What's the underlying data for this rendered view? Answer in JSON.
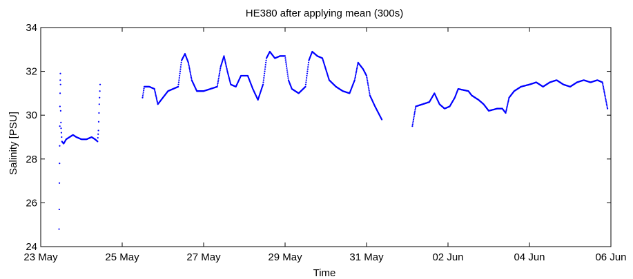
{
  "chart_data": {
    "type": "scatter",
    "title": "HE380 after applying mean (300s)",
    "xlabel": "Time",
    "ylabel": "Salinity [PSU]",
    "x_unit": "date (2013, days; tick labels day-month)",
    "xlim": [
      "23 May",
      "06 Jun"
    ],
    "ylim": [
      24,
      34
    ],
    "grid": false,
    "legend": "none",
    "marker_color": "#0000ff",
    "x_ticks": [
      "23 May",
      "25 May",
      "27 May",
      "29 May",
      "31 May",
      "02 Jun",
      "04 Jun",
      "06 Jun"
    ],
    "y_ticks": [
      "24",
      "26",
      "28",
      "30",
      "32",
      "34"
    ],
    "series": [
      {
        "points": [
          [
            "23 May 10:48",
            24.8
          ],
          [
            "23 May 10:55",
            25.7
          ],
          [
            "23 May 11:00",
            26.9
          ],
          [
            "23 May 11:05",
            27.8
          ],
          [
            "23 May 11:10",
            28.6
          ],
          [
            "23 May 11:15",
            29.5
          ],
          [
            "23 May 11:20",
            30.4
          ],
          [
            "23 May 11:25",
            31.0
          ],
          [
            "23 May 11:30",
            31.6
          ],
          [
            "23 May 11:35",
            31.9
          ],
          [
            "23 May 11:40",
            31.4
          ],
          [
            "23 May 11:45",
            30.2
          ],
          [
            "23 May 12:00",
            29.4
          ],
          [
            "23 May 12:30",
            28.8
          ],
          [
            "23 May 13:30",
            28.7
          ],
          [
            "23 May 15:00",
            28.9
          ],
          [
            "23 May 17:00",
            29.0
          ],
          [
            "23 May 19:00",
            29.1
          ],
          [
            "23 May 21:00",
            29.0
          ],
          [
            "24 May 00:00",
            28.9
          ],
          [
            "24 May 03:00",
            28.9
          ],
          [
            "24 May 06:00",
            29.0
          ],
          [
            "24 May 08:00",
            28.9
          ],
          [
            "24 May 09:30",
            28.8
          ],
          [
            "24 May 10:00",
            29.3
          ],
          [
            "24 May 10:30",
            30.5
          ],
          [
            "24 May 11:00",
            31.4
          ],
          [
            "25 May 12:00",
            30.8
          ],
          [
            "25 May 13:00",
            31.3
          ],
          [
            "25 May 16:00",
            31.3
          ],
          [
            "25 May 19:00",
            31.2
          ],
          [
            "25 May 21:00",
            30.5
          ],
          [
            "26 May 00:00",
            30.8
          ],
          [
            "26 May 03:00",
            31.1
          ],
          [
            "26 May 06:00",
            31.2
          ],
          [
            "26 May 09:00",
            31.3
          ],
          [
            "26 May 11:00",
            32.5
          ],
          [
            "26 May 13:00",
            32.8
          ],
          [
            "26 May 15:00",
            32.4
          ],
          [
            "26 May 17:00",
            31.6
          ],
          [
            "26 May 20:00",
            31.1
          ],
          [
            "27 May 00:00",
            31.1
          ],
          [
            "27 May 04:00",
            31.2
          ],
          [
            "27 May 08:00",
            31.3
          ],
          [
            "27 May 10:00",
            32.2
          ],
          [
            "27 May 12:00",
            32.7
          ],
          [
            "27 May 14:00",
            32.0
          ],
          [
            "27 May 16:00",
            31.4
          ],
          [
            "27 May 19:00",
            31.3
          ],
          [
            "27 May 22:00",
            31.8
          ],
          [
            "28 May 02:00",
            31.8
          ],
          [
            "28 May 05:00",
            31.2
          ],
          [
            "28 May 08:00",
            30.7
          ],
          [
            "28 May 11:00",
            31.4
          ],
          [
            "28 May 13:00",
            32.6
          ],
          [
            "28 May 15:00",
            32.9
          ],
          [
            "28 May 18:00",
            32.6
          ],
          [
            "28 May 21:00",
            32.7
          ],
          [
            "29 May 00:00",
            32.7
          ],
          [
            "29 May 02:00",
            31.6
          ],
          [
            "29 May 04:00",
            31.2
          ],
          [
            "29 May 08:00",
            31.0
          ],
          [
            "29 May 12:00",
            31.3
          ],
          [
            "29 May 14:00",
            32.5
          ],
          [
            "29 May 16:00",
            32.9
          ],
          [
            "29 May 19:00",
            32.7
          ],
          [
            "29 May 22:00",
            32.6
          ],
          [
            "30 May 02:00",
            31.6
          ],
          [
            "30 May 06:00",
            31.3
          ],
          [
            "30 May 10:00",
            31.1
          ],
          [
            "30 May 14:00",
            31.0
          ],
          [
            "30 May 17:00",
            31.6
          ],
          [
            "30 May 19:00",
            32.4
          ],
          [
            "30 May 22:00",
            32.1
          ],
          [
            "31 May 00:00",
            31.8
          ],
          [
            "31 May 02:00",
            30.9
          ],
          [
            "31 May 05:00",
            30.4
          ],
          [
            "31 May 07:00",
            30.1
          ],
          [
            "31 May 09:00",
            29.8
          ],
          [
            "01 Jun 03:00",
            29.5
          ],
          [
            "01 Jun 05:00",
            30.4
          ],
          [
            "01 Jun 09:00",
            30.5
          ],
          [
            "01 Jun 13:00",
            30.6
          ],
          [
            "01 Jun 16:00",
            31.0
          ],
          [
            "01 Jun 19:00",
            30.5
          ],
          [
            "01 Jun 22:00",
            30.3
          ],
          [
            "02 Jun 01:00",
            30.4
          ],
          [
            "02 Jun 04:00",
            30.8
          ],
          [
            "02 Jun 06:00",
            31.2
          ],
          [
            "02 Jun 12:00",
            31.1
          ],
          [
            "02 Jun 14:00",
            30.9
          ],
          [
            "02 Jun 18:00",
            30.7
          ],
          [
            "02 Jun 21:00",
            30.5
          ],
          [
            "03 Jun 00:00",
            30.2
          ],
          [
            "03 Jun 05:00",
            30.3
          ],
          [
            "03 Jun 08:00",
            30.3
          ],
          [
            "03 Jun 10:00",
            30.1
          ],
          [
            "03 Jun 12:00",
            30.8
          ],
          [
            "03 Jun 15:00",
            31.1
          ],
          [
            "03 Jun 19:00",
            31.3
          ],
          [
            "04 Jun 00:00",
            31.4
          ],
          [
            "04 Jun 04:00",
            31.5
          ],
          [
            "04 Jun 08:00",
            31.3
          ],
          [
            "04 Jun 12:00",
            31.5
          ],
          [
            "04 Jun 16:00",
            31.6
          ],
          [
            "04 Jun 20:00",
            31.4
          ],
          [
            "05 Jun 00:00",
            31.3
          ],
          [
            "05 Jun 04:00",
            31.5
          ],
          [
            "05 Jun 08:00",
            31.6
          ],
          [
            "05 Jun 12:00",
            31.5
          ],
          [
            "05 Jun 16:00",
            31.6
          ],
          [
            "05 Jun 19:00",
            31.5
          ],
          [
            "05 Jun 21:00",
            30.7
          ],
          [
            "05 Jun 22:00",
            30.3
          ]
        ]
      }
    ]
  }
}
